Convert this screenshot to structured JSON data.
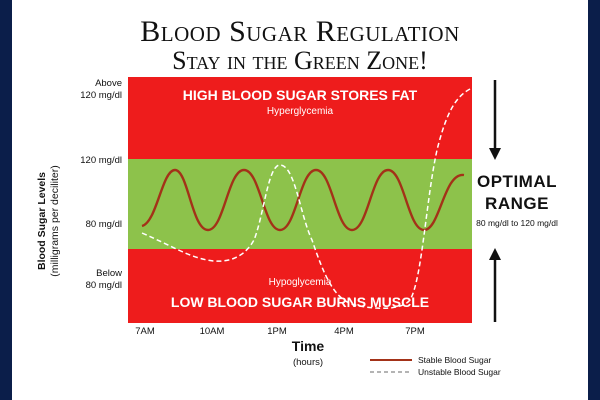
{
  "chart_data": {
    "type": "line",
    "title": "Blood Sugar Regulation",
    "subtitle": "Stay in the Green Zone!",
    "xlabel": "Time",
    "xlabel_sub": "(hours)",
    "ylabel": "Blood Sugar Levels",
    "ylabel_sub": "(milligrams per deciliter)",
    "x_ticks": [
      "7AM",
      "10AM",
      "1PM",
      "4PM",
      "7PM"
    ],
    "y_ticks": [
      {
        "line1": "Above",
        "line2": "120 mg/dl"
      },
      {
        "line1": "120 mg/dl",
        "line2": ""
      },
      {
        "line1": "80 mg/dl",
        "line2": ""
      },
      {
        "line1": "Below",
        "line2": "80 mg/dl"
      }
    ],
    "zones": {
      "high": {
        "label": "HIGH BLOOD SUGAR STORES FAT",
        "sub": "Hyperglycemia",
        "color": "#ee1c1c"
      },
      "optimal": {
        "color": "#8dc24b"
      },
      "low": {
        "label": "LOW BLOOD SUGAR BURNS MUSCLE",
        "sub": "Hypoglycemia",
        "color": "#ee1c1c"
      }
    },
    "annotation": {
      "line1": "OPTIMAL",
      "line2": "RANGE",
      "sub": "80 mg/dl to 120 mg/dl"
    },
    "legend": "bottom-right",
    "series": [
      {
        "name": "Stable Blood Sugar",
        "color": "#a33218",
        "style": "solid"
      },
      {
        "name": "Unstable Blood Sugar",
        "color": "#ffffff",
        "style": "dashed"
      }
    ]
  }
}
